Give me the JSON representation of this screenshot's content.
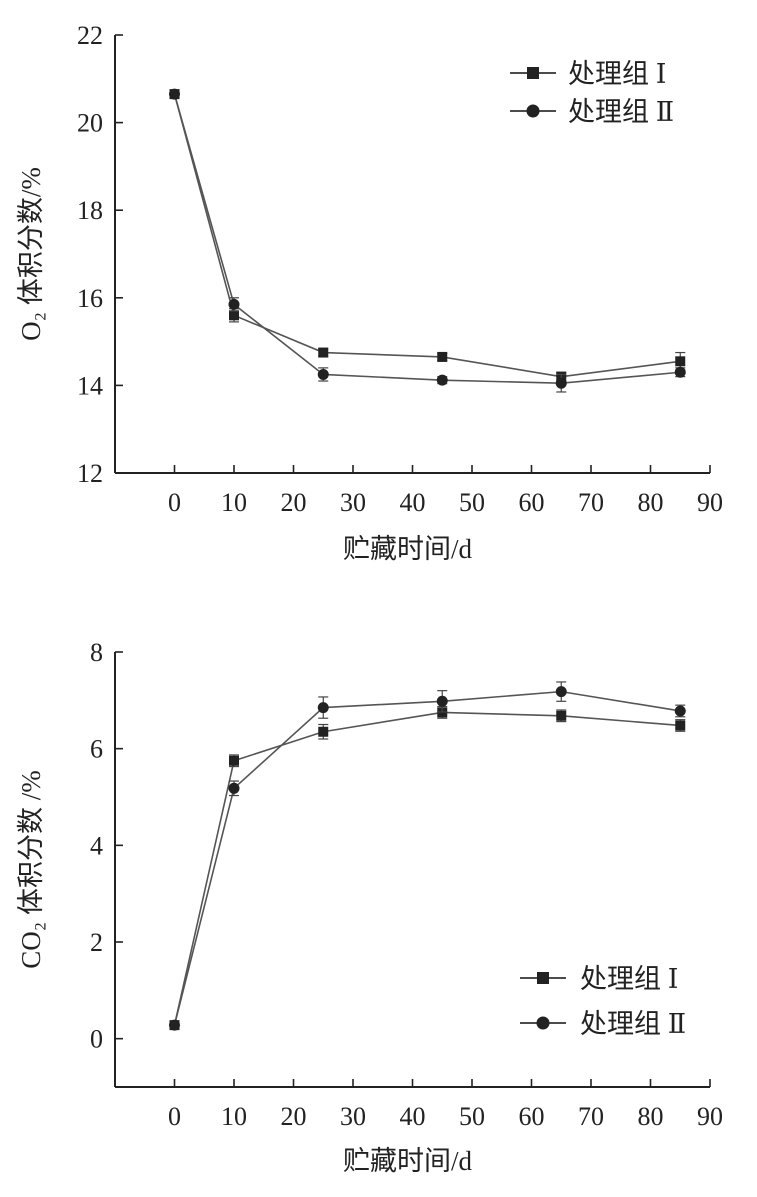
{
  "chart_data": [
    {
      "type": "line",
      "ylabel": "O₂ 体积分数/%",
      "xlabel": "贮藏时间/d",
      "xlim": [
        -10,
        90
      ],
      "ylim": [
        12,
        22
      ],
      "xticks": [
        0,
        10,
        20,
        30,
        40,
        50,
        60,
        70,
        80,
        90
      ],
      "yticks": [
        12,
        14,
        16,
        18,
        20,
        22
      ],
      "legend_position": "top-right",
      "x": [
        0,
        10,
        25,
        45,
        65,
        85
      ],
      "series": [
        {
          "name": "处理组 Ⅰ",
          "marker": "square",
          "values": [
            20.65,
            15.6,
            14.75,
            14.65,
            14.2,
            14.55
          ],
          "errors": [
            0.05,
            0.15,
            0.08,
            0.08,
            0.1,
            0.2
          ]
        },
        {
          "name": "处理组 Ⅱ",
          "marker": "circle",
          "values": [
            20.65,
            15.85,
            14.25,
            14.12,
            14.05,
            14.3
          ],
          "errors": [
            0.05,
            0.15,
            0.15,
            0.08,
            0.2,
            0.1
          ]
        }
      ]
    },
    {
      "type": "line",
      "ylabel": "CO₂ 体积分数 /%",
      "xlabel": "贮藏时间/d",
      "xlim": [
        -10,
        90
      ],
      "ylim": [
        -1,
        8
      ],
      "xticks": [
        0,
        10,
        20,
        30,
        40,
        50,
        60,
        70,
        80,
        90
      ],
      "yticks": [
        0,
        2,
        4,
        6,
        8
      ],
      "legend_position": "bottom-right",
      "x": [
        0,
        10,
        25,
        45,
        65,
        85
      ],
      "series": [
        {
          "name": "处理组 Ⅰ",
          "marker": "square",
          "values": [
            0.28,
            5.75,
            6.35,
            6.75,
            6.68,
            6.48
          ],
          "errors": [
            0.05,
            0.12,
            0.15,
            0.12,
            0.12,
            0.12
          ]
        },
        {
          "name": "处理组 Ⅱ",
          "marker": "circle",
          "values": [
            0.28,
            5.18,
            6.85,
            6.98,
            7.18,
            6.78
          ],
          "errors": [
            0.05,
            0.15,
            0.22,
            0.22,
            0.2,
            0.12
          ]
        }
      ]
    }
  ]
}
